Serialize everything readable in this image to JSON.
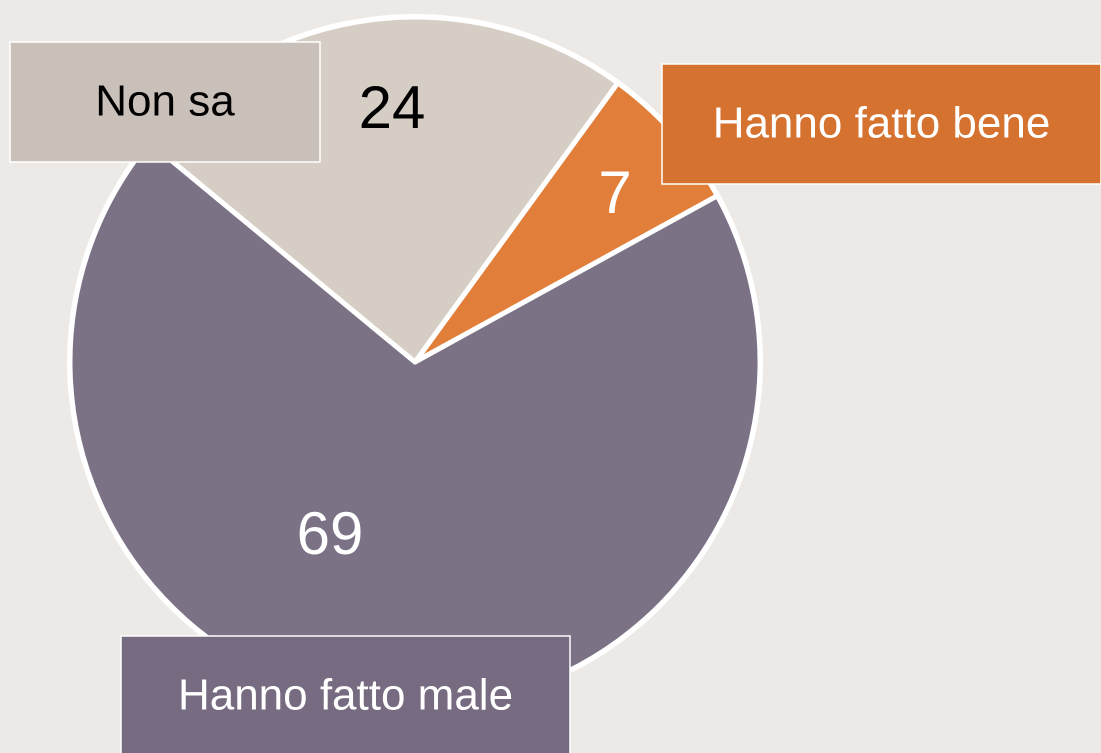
{
  "chart_data": {
    "type": "pie",
    "categories": [
      "Hanno fatto bene",
      "Hanno fatto male",
      "Non sa"
    ],
    "values": [
      7,
      69,
      24
    ],
    "colors": [
      "#e07e3a",
      "#7b7286",
      "#d6cec5"
    ],
    "start_angle": 36
  }
}
